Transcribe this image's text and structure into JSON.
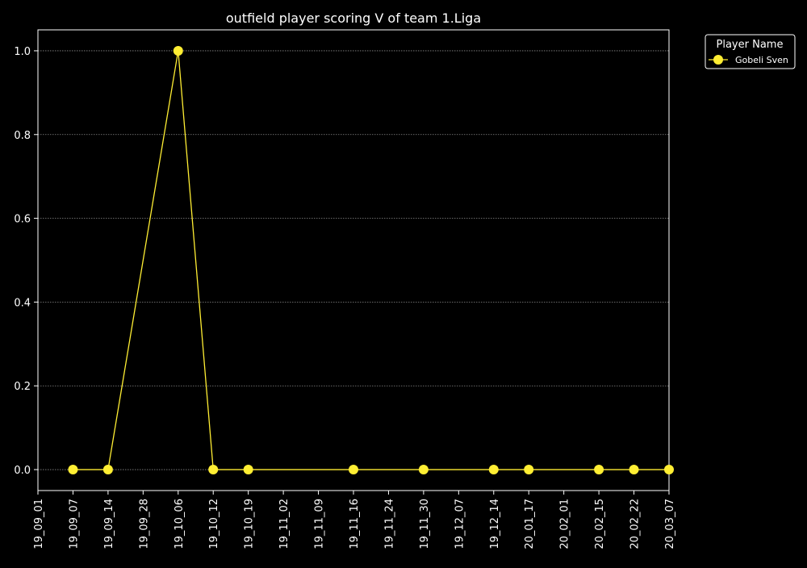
{
  "chart_data": {
    "type": "line",
    "title": "outfield player scoring V of team 1.Liga",
    "xlabel": "",
    "ylabel": "",
    "x_ticks": [
      "19_09_01",
      "19_09_07",
      "19_09_14",
      "19_09_28",
      "19_10_06",
      "19_10_12",
      "19_10_19",
      "19_11_02",
      "19_11_09",
      "19_11_16",
      "19_11_24",
      "19_11_30",
      "19_12_07",
      "19_12_14",
      "20_01_17",
      "20_02_01",
      "20_02_15",
      "20_02_22",
      "20_03_07"
    ],
    "y_ticks": [
      "0.0",
      "0.2",
      "0.4",
      "0.6",
      "0.8",
      "1.0"
    ],
    "ylim": [
      -0.05,
      1.05
    ],
    "grid": "horizontal dotted",
    "legend": {
      "title": "Player Name",
      "placement": "outside top-right"
    },
    "series": [
      {
        "name": "Gobeli Sven",
        "color": "#ffee33",
        "points": [
          {
            "x": "19_09_07",
            "y": 0
          },
          {
            "x": "19_09_14",
            "y": 0
          },
          {
            "x": "19_10_06",
            "y": 1
          },
          {
            "x": "19_10_12",
            "y": 0
          },
          {
            "x": "19_10_19",
            "y": 0
          },
          {
            "x": "19_11_16",
            "y": 0
          },
          {
            "x": "19_11_30",
            "y": 0
          },
          {
            "x": "19_12_14",
            "y": 0
          },
          {
            "x": "20_01_17",
            "y": 0
          },
          {
            "x": "20_02_15",
            "y": 0
          },
          {
            "x": "20_02_22",
            "y": 0
          },
          {
            "x": "20_03_07",
            "y": 0
          }
        ]
      }
    ]
  }
}
